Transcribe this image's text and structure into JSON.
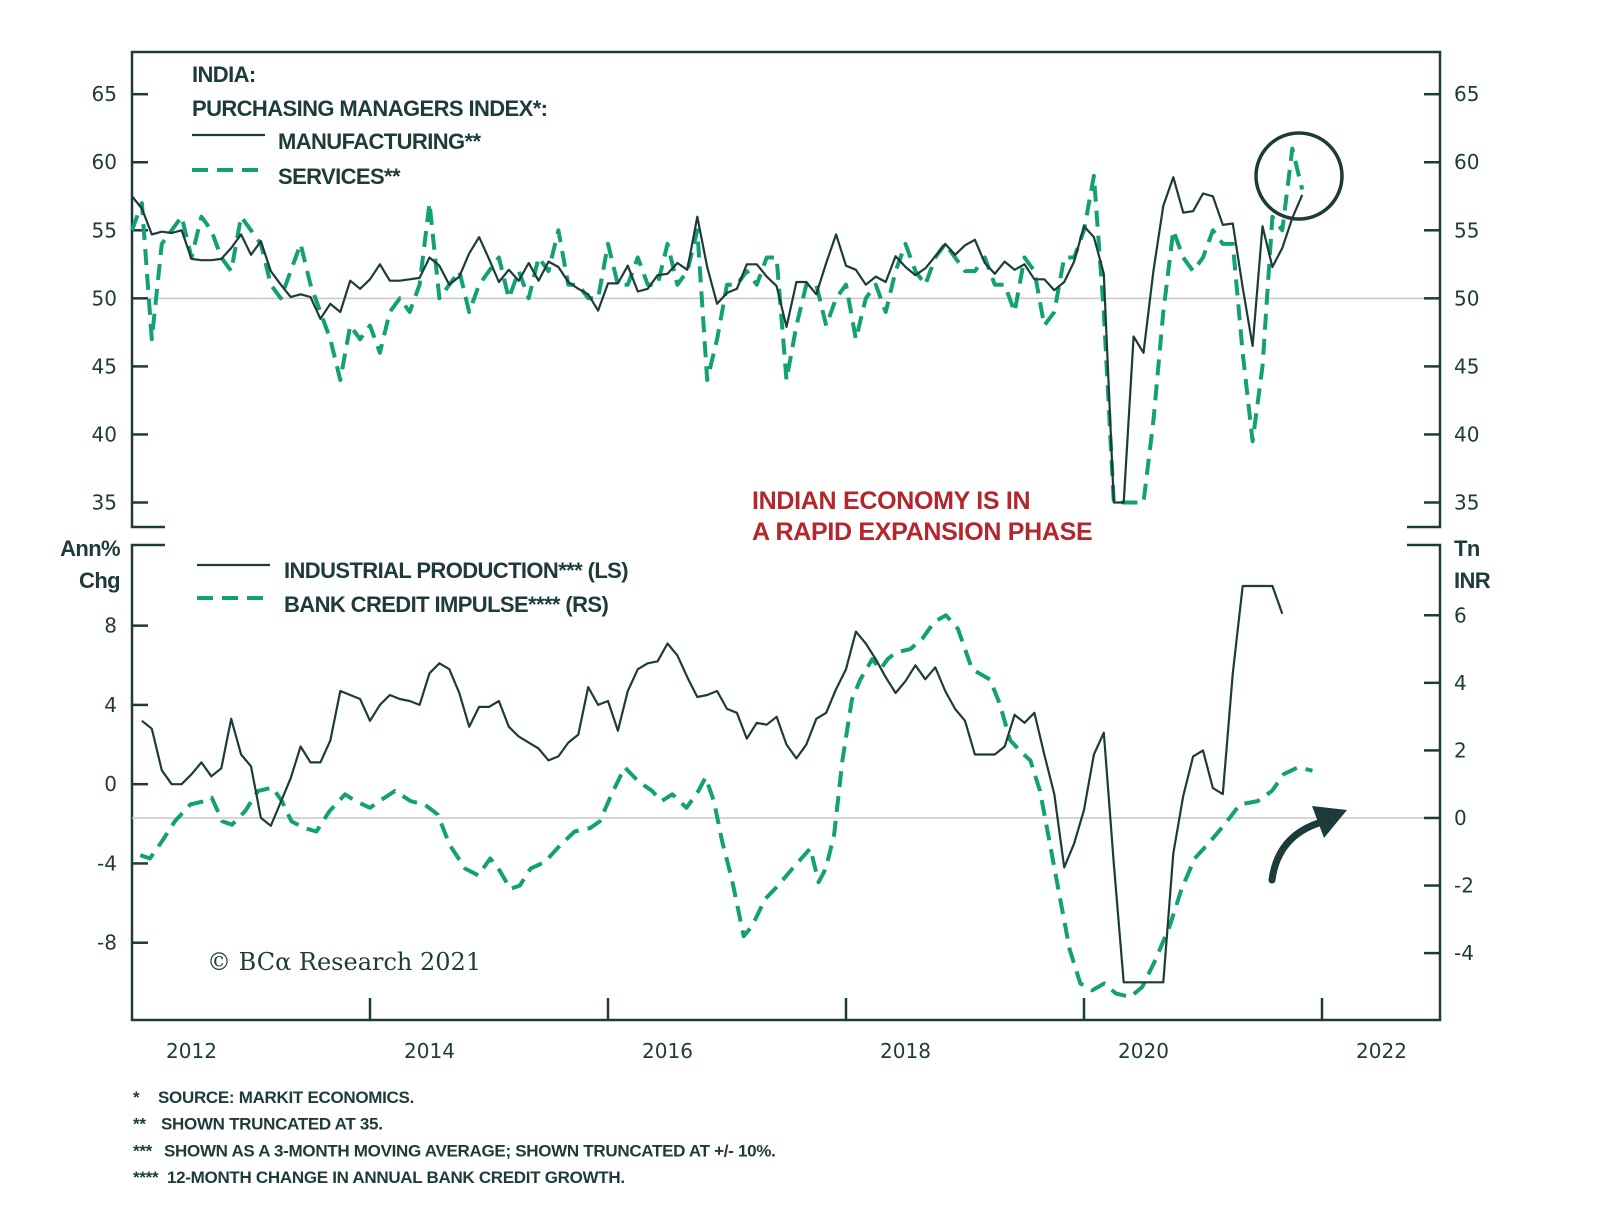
{
  "title": {
    "line1": "INDIA:",
    "line2": "PURCHASING MANAGERS INDEX*:"
  },
  "annotation": {
    "line1": "INDIAN ECONOMY IS IN",
    "line2": "A RAPID EXPANSION PHASE"
  },
  "copyright": "© BCα Research 2021",
  "footnotes": [
    {
      "mark": "*",
      "text": "SOURCE: MARKIT ECONOMICS."
    },
    {
      "mark": "**",
      "text": "SHOWN TRUNCATED AT 35."
    },
    {
      "mark": "***",
      "text": "SHOWN AS A 3-MONTH MOVING AVERAGE; SHOWN TRUNCATED AT +/- 10%."
    },
    {
      "mark": "****",
      "text": "12-MONTH CHANGE IN ANNUAL BANK CREDIT GROWTH."
    }
  ],
  "colors": {
    "dark": "#1d3b3b",
    "green": "#12a075",
    "red": "#b3262c",
    "grid": "#c9c9c9"
  },
  "chart_data": [
    {
      "type": "line",
      "panel": "top",
      "title": "INDIA: PURCHASING MANAGERS INDEX*",
      "ylim": [
        33.2,
        68.1
      ],
      "yticks_left": [
        65,
        60,
        55,
        50,
        45,
        40,
        35
      ],
      "yticks_right": [
        65,
        60,
        55,
        50,
        45,
        40,
        35
      ],
      "reference_line": 50,
      "legend": [
        {
          "label": "MANUFACTURING**",
          "style": "solid"
        },
        {
          "label": "SERVICES**",
          "style": "dashed"
        }
      ],
      "series": [
        {
          "name": "MANUFACTURING**",
          "start": "2012-01",
          "frequency": "monthly",
          "values": [
            57.5,
            56.6,
            54.7,
            54.9,
            54.8,
            55.0,
            52.9,
            52.8,
            52.8,
            52.9,
            53.7,
            54.7,
            53.2,
            54.2,
            52.0,
            51.0,
            50.1,
            50.3,
            50.1,
            48.5,
            49.6,
            49.0,
            51.3,
            50.7,
            51.4,
            52.5,
            51.3,
            51.3,
            51.4,
            51.5,
            53.0,
            52.4,
            51.0,
            51.6,
            53.3,
            54.5,
            52.9,
            51.2,
            52.1,
            51.3,
            52.6,
            51.3,
            52.7,
            52.3,
            51.2,
            50.7,
            50.3,
            49.1,
            51.1,
            51.1,
            52.4,
            50.5,
            50.7,
            51.7,
            51.8,
            52.6,
            52.1,
            56.0,
            52.3,
            49.6,
            50.4,
            50.7,
            52.5,
            52.5,
            51.6,
            50.9,
            47.9,
            51.2,
            51.2,
            50.3,
            52.6,
            54.7,
            52.4,
            52.1,
            51.0,
            51.6,
            51.2,
            53.1,
            52.3,
            51.7,
            52.2,
            53.1,
            54.0,
            53.2,
            53.9,
            54.3,
            52.6,
            51.8,
            52.7,
            52.1,
            52.5,
            51.4,
            51.4,
            50.6,
            51.2,
            52.7,
            55.3,
            54.5,
            51.8,
            35.0,
            35.0,
            47.2,
            46.0,
            52.0,
            56.8,
            58.9,
            56.3,
            56.4,
            57.7,
            57.5,
            55.4,
            55.5,
            50.8,
            46.5,
            55.3,
            52.3,
            53.7,
            55.9,
            57.6
          ]
        },
        {
          "name": "SERVICES**",
          "start": "2012-01",
          "frequency": "monthly",
          "values": [
            55,
            57,
            47,
            54,
            55,
            56,
            53,
            56,
            55,
            53,
            52,
            56,
            55,
            54,
            51,
            50,
            52,
            54,
            51,
            49,
            47,
            44,
            48,
            47,
            48,
            46,
            49,
            50,
            49,
            51,
            57,
            50,
            51,
            52,
            49,
            51,
            52,
            53,
            50,
            52,
            50,
            53,
            52,
            55,
            51,
            51,
            50,
            50,
            54,
            51,
            51,
            53,
            51,
            51,
            54,
            51,
            52,
            55,
            44,
            47,
            51,
            51,
            52,
            51,
            53,
            53,
            44,
            48,
            51,
            51,
            48,
            50,
            51,
            47,
            50,
            51,
            49,
            52,
            54,
            52,
            51,
            53,
            54,
            53,
            52,
            52,
            53,
            51,
            51,
            49,
            53,
            52,
            48,
            49,
            53,
            53,
            55,
            59,
            49,
            35,
            35,
            35,
            35,
            41,
            49,
            55,
            53,
            52,
            53,
            55,
            54,
            54,
            46,
            39.5,
            45,
            56,
            55,
            61,
            58
          ]
        }
      ]
    },
    {
      "type": "line",
      "panel": "bottom",
      "ylabel_left": [
        "Ann%",
        "Chg"
      ],
      "ylabel_right": [
        "Tn",
        "INR"
      ],
      "ylim_left": [
        -11.9,
        12.07
      ],
      "ylim_right": [
        -5.98,
        8.08
      ],
      "yticks_left": [
        8,
        4,
        0,
        -4,
        -8
      ],
      "yticks_right": [
        6,
        4,
        2,
        0,
        -2,
        -4
      ],
      "reference_line_right": 0,
      "xlim": [
        2012,
        2023
      ],
      "xticks": [
        2014,
        2016,
        2018,
        2020,
        2022
      ],
      "xtick_labels": [
        "2012",
        "2014",
        "2016",
        "2018",
        "2020",
        "2022"
      ],
      "legend": [
        {
          "label": "INDUSTRIAL PRODUCTION*** (LS)",
          "style": "solid"
        },
        {
          "label": "BANK CREDIT IMPULSE**** (RS)",
          "style": "dashed"
        }
      ],
      "series": [
        {
          "name": "INDUSTRIAL PRODUCTION*** (LS)",
          "axis": "left",
          "start": "2012-02",
          "frequency": "monthly",
          "values": [
            3.2,
            2.8,
            0.7,
            0,
            0,
            0.5,
            1.1,
            0.4,
            0.8,
            3.3,
            1.5,
            0.9,
            -1.7,
            -2.1,
            -0.9,
            0.3,
            1.9,
            1.1,
            1.1,
            2.2,
            4.7,
            4.5,
            4.3,
            3.2,
            4.0,
            4.5,
            4.3,
            4.2,
            4.0,
            5.6,
            6.1,
            5.8,
            4.6,
            2.9,
            3.9,
            3.9,
            4.2,
            2.9,
            2.4,
            2.1,
            1.8,
            1.2,
            1.4,
            2.1,
            2.5,
            4.9,
            4.0,
            4.2,
            2.7,
            4.7,
            5.8,
            6.1,
            6.2,
            7.1,
            6.5,
            5.4,
            4.4,
            4.5,
            4.7,
            3.8,
            3.6,
            2.3,
            3.1,
            3.0,
            3.4,
            2.0,
            1.3,
            2.0,
            3.3,
            3.6,
            4.8,
            5.8,
            7.7,
            7.1,
            6.3,
            5.4,
            4.6,
            5.2,
            6.0,
            5.3,
            5.9,
            4.7,
            3.8,
            3.2,
            1.5,
            1.5,
            1.5,
            1.9,
            3.5,
            3.1,
            3.6,
            1.5,
            -0.5,
            -4.2,
            -3.0,
            -1.3,
            1.5,
            2.6,
            -4.0,
            -10,
            -10,
            -10,
            -10,
            -10,
            -3.5,
            -0.6,
            1.4,
            1.7,
            -0.2,
            -0.5,
            5.6,
            10,
            10,
            10,
            10,
            8.6
          ]
        },
        {
          "name": "BANK CREDIT IMPULSE**** (RS)",
          "axis": "right",
          "points": [
            [
              2012.07,
              -1.1
            ],
            [
              2012.15,
              -1.2
            ],
            [
              2012.25,
              -0.7
            ],
            [
              2012.36,
              -0.1
            ],
            [
              2012.49,
              0.4
            ],
            [
              2012.61,
              0.5
            ],
            [
              2012.67,
              0.6
            ],
            [
              2012.76,
              -0.1
            ],
            [
              2012.84,
              -0.2
            ],
            [
              2012.95,
              0.2
            ],
            [
              2013.06,
              0.8
            ],
            [
              2013.18,
              0.9
            ],
            [
              2013.26,
              0.5
            ],
            [
              2013.34,
              -0.1
            ],
            [
              2013.45,
              -0.3
            ],
            [
              2013.55,
              -0.4
            ],
            [
              2013.66,
              0.2
            ],
            [
              2013.79,
              0.7
            ],
            [
              2013.88,
              0.5
            ],
            [
              2014.0,
              0.3
            ],
            [
              2014.08,
              0.5
            ],
            [
              2014.21,
              0.8
            ],
            [
              2014.34,
              0.5
            ],
            [
              2014.46,
              0.4
            ],
            [
              2014.57,
              0.1
            ],
            [
              2014.67,
              -0.8
            ],
            [
              2014.8,
              -1.5
            ],
            [
              2014.91,
              -1.7
            ],
            [
              2015.01,
              -1.2
            ],
            [
              2015.08,
              -1.5
            ],
            [
              2015.18,
              -2.1
            ],
            [
              2015.26,
              -2.0
            ],
            [
              2015.35,
              -1.5
            ],
            [
              2015.47,
              -1.3
            ],
            [
              2015.6,
              -0.8
            ],
            [
              2015.72,
              -0.4
            ],
            [
              2015.85,
              -0.3
            ],
            [
              2015.93,
              -0.1
            ],
            [
              2016.03,
              0.7
            ],
            [
              2016.14,
              1.5
            ],
            [
              2016.25,
              1.1
            ],
            [
              2016.37,
              0.8
            ],
            [
              2016.45,
              0.5
            ],
            [
              2016.54,
              0.7
            ],
            [
              2016.66,
              0.3
            ],
            [
              2016.76,
              0.8
            ],
            [
              2016.82,
              1.2
            ],
            [
              2016.89,
              0.5
            ],
            [
              2016.96,
              -0.7
            ],
            [
              2017.04,
              -1.8
            ],
            [
              2017.14,
              -3.5
            ],
            [
              2017.21,
              -3.2
            ],
            [
              2017.32,
              -2.4
            ],
            [
              2017.43,
              -2.0
            ],
            [
              2017.55,
              -1.5
            ],
            [
              2017.65,
              -1.1
            ],
            [
              2017.7,
              -0.9
            ],
            [
              2017.77,
              -1.9
            ],
            [
              2017.83,
              -1.5
            ],
            [
              2017.9,
              -0.5
            ],
            [
              2017.97,
              1.7
            ],
            [
              2018.05,
              3.5
            ],
            [
              2018.12,
              4.1
            ],
            [
              2018.22,
              4.7
            ],
            [
              2018.29,
              4.4
            ],
            [
              2018.35,
              4.7
            ],
            [
              2018.42,
              4.9
            ],
            [
              2018.54,
              5.0
            ],
            [
              2018.64,
              5.3
            ],
            [
              2018.74,
              5.8
            ],
            [
              2018.84,
              6.0
            ],
            [
              2018.94,
              5.6
            ],
            [
              2019.06,
              4.4
            ],
            [
              2019.21,
              4.1
            ],
            [
              2019.29,
              3.4
            ],
            [
              2019.38,
              2.3
            ],
            [
              2019.46,
              2.0
            ],
            [
              2019.55,
              1.7
            ],
            [
              2019.63,
              0.8
            ],
            [
              2019.71,
              -0.7
            ],
            [
              2019.8,
              -2.4
            ],
            [
              2019.88,
              -3.9
            ],
            [
              2019.97,
              -4.9
            ],
            [
              2020.07,
              -5.1
            ],
            [
              2020.17,
              -4.9
            ],
            [
              2020.27,
              -5.2
            ],
            [
              2020.39,
              -5.3
            ],
            [
              2020.49,
              -5.0
            ],
            [
              2020.6,
              -4.2
            ],
            [
              2020.72,
              -3.2
            ],
            [
              2020.82,
              -2.1
            ],
            [
              2020.93,
              -1.2
            ],
            [
              2021.06,
              -0.7
            ],
            [
              2021.18,
              -0.2
            ],
            [
              2021.31,
              0.4
            ],
            [
              2021.46,
              0.5
            ],
            [
              2021.58,
              0.8
            ],
            [
              2021.68,
              1.3
            ],
            [
              2021.8,
              1.5
            ],
            [
              2021.92,
              1.4
            ]
          ]
        }
      ]
    }
  ]
}
